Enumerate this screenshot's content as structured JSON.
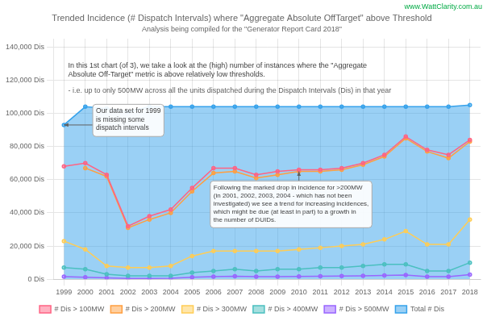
{
  "chart_data": {
    "type": "line",
    "title": "Trended Incidence (# Dispatch Intervals) where \"Aggregate Absolute OffTarget\" above Threshold",
    "subtitle": "Analysis being compiled for the \"Generator Report Card 2018\"",
    "annotations": [
      "In this 1st chart (of 3), we take a look at the (high) number of instances where the \"Aggregate\nAbsolute Off-Target\" metric is above relatively low thresholds.",
      "- i.e. up to only 500MW across all the units dispatched during the Dispatch Intervals (Dis) in that year",
      "Our data set for 1999\nis missing some\ndispatch intervals",
      "Following the marked drop in incidence for >200MW\n(in 2001, 2002, 2003, 2004 - which has not been\ninvestigated) we see a trend for increasing incidences,\nwhich might be due (at least in part) to a growth in\nthe number of DUIDs.",
      "www.WattClarity.com.au"
    ],
    "x": [
      1999,
      2000,
      2001,
      2002,
      2003,
      2004,
      2005,
      2006,
      2007,
      2008,
      2009,
      2010,
      2011,
      2012,
      2013,
      2014,
      2015,
      2016,
      2017,
      2018
    ],
    "xlim": [
      1998.5,
      2018.5
    ],
    "xticks": [
      1999,
      2000,
      2001,
      2002,
      2003,
      2004,
      2005,
      2006,
      2007,
      2008,
      2009,
      2010,
      2011,
      2012,
      2013,
      2014,
      2015,
      2016,
      2017,
      2018
    ],
    "ylim": [
      0,
      145000
    ],
    "yticks": [
      {
        "value": 0,
        "label": "0 Dis"
      },
      {
        "value": 20000,
        "label": "20,000 Dis"
      },
      {
        "value": 40000,
        "label": "40,000 Dis"
      },
      {
        "value": 60000,
        "label": "60,000 Dis"
      },
      {
        "value": 80000,
        "label": "80,000 Dis"
      },
      {
        "value": 100000,
        "label": "100,000 Dis"
      },
      {
        "value": 120000,
        "label": "120,000 Dis"
      },
      {
        "value": 140000,
        "label": "140,000 Dis"
      }
    ],
    "grid": true,
    "legend": "bottom",
    "series": [
      {
        "name": "Total # Dis",
        "type": "area",
        "values": [
          93000,
          104000,
          103000,
          101000,
          104000,
          104000,
          104000,
          104000,
          104000,
          104000,
          104000,
          104000,
          104000,
          104000,
          104000,
          104000,
          104000,
          104000,
          104000,
          105000
        ]
      },
      {
        "name": "# Dis > 100MW",
        "values": [
          68000,
          70000,
          63000,
          32000,
          38000,
          42000,
          55000,
          67000,
          67000,
          63000,
          65000,
          66000,
          66000,
          67000,
          70000,
          75000,
          86000,
          78000,
          75000,
          84000
        ]
      },
      {
        "name": "# Dis > 200MW",
        "values": [
          null,
          67000,
          62000,
          31000,
          36000,
          40000,
          53000,
          64000,
          65000,
          61000,
          63000,
          65000,
          65000,
          66000,
          69000,
          74000,
          85000,
          77000,
          73000,
          83000
        ]
      },
      {
        "name": "# Dis > 300MW",
        "values": [
          23000,
          18000,
          8000,
          7000,
          7000,
          8000,
          14000,
          17000,
          17000,
          17000,
          17000,
          18000,
          19000,
          20000,
          21000,
          24000,
          29000,
          21000,
          21000,
          36000
        ]
      },
      {
        "name": "# Dis > 400MW",
        "values": [
          7000,
          6000,
          3000,
          2000,
          2000,
          2000,
          4000,
          5000,
          6000,
          5000,
          6000,
          6000,
          7000,
          7000,
          8000,
          9000,
          9000,
          5000,
          5000,
          10000
        ]
      },
      {
        "name": "# Dis > 500MW",
        "values": [
          1500,
          1200,
          800,
          500,
          500,
          600,
          1200,
          1500,
          1800,
          1500,
          1600,
          1700,
          1800,
          1900,
          2100,
          2300,
          2500,
          1500,
          1500,
          2800
        ]
      }
    ]
  }
}
